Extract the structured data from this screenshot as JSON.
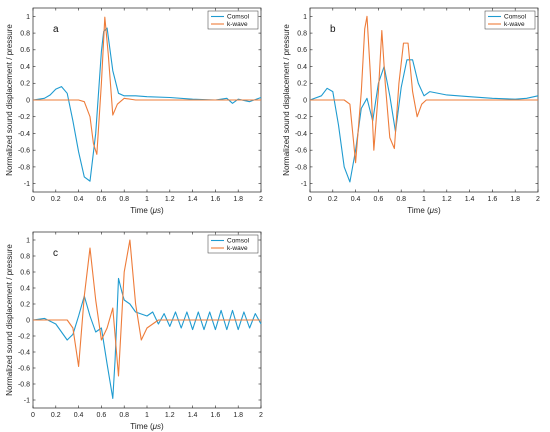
{
  "colors": {
    "comsol": "#1f9bd0",
    "kwave": "#ee7c3a",
    "axis": "#222222",
    "zero": "#777777"
  },
  "chart_data": [
    {
      "type": "line",
      "panel_label": "a",
      "xlabel_prefix": "Time (",
      "xlabel_unit": "μs",
      "xlabel_suffix": ")",
      "ylabel": "Normalized sound displacement / pressure",
      "xlim": [
        0,
        2
      ],
      "ylim": [
        -1.1,
        1.1
      ],
      "xticks": [
        "0",
        "0.2",
        "0.4",
        "0.6",
        "0.8",
        "1",
        "1.2",
        "1.4",
        "1.6",
        "1.8",
        "2"
      ],
      "yticks": [
        "1",
        "0.8",
        "0.6",
        "0.4",
        "0.2",
        "0",
        "-0.2",
        "-0.4",
        "-0.6",
        "-0.8",
        "-1"
      ],
      "legend": "top-right",
      "series": [
        {
          "name": "Comsol",
          "x": [
            0,
            0.1,
            0.15,
            0.2,
            0.25,
            0.3,
            0.35,
            0.4,
            0.45,
            0.5,
            0.55,
            0.6,
            0.62,
            0.65,
            0.7,
            0.75,
            0.8,
            0.9,
            1.0,
            1.2,
            1.4,
            1.6,
            1.7,
            1.75,
            1.8,
            1.9,
            2.0
          ],
          "y": [
            0,
            0.02,
            0.06,
            0.13,
            0.16,
            0.08,
            -0.25,
            -0.62,
            -0.92,
            -0.97,
            -0.4,
            0.58,
            0.82,
            0.86,
            0.35,
            0.08,
            0.05,
            0.05,
            0.04,
            0.03,
            0.01,
            0,
            0.02,
            -0.04,
            0.01,
            -0.02,
            0.03
          ]
        },
        {
          "name": "k-wave",
          "x": [
            0,
            0.4,
            0.45,
            0.5,
            0.53,
            0.56,
            0.6,
            0.63,
            0.66,
            0.7,
            0.74,
            0.8,
            0.9,
            1.0,
            1.2,
            1.6,
            2.0
          ],
          "y": [
            0,
            0,
            -0.02,
            -0.2,
            -0.52,
            -0.65,
            0.2,
            0.99,
            0.55,
            -0.18,
            -0.05,
            0.02,
            0,
            0,
            0,
            0,
            0
          ]
        }
      ]
    },
    {
      "type": "line",
      "panel_label": "b",
      "xlabel_prefix": "Time (",
      "xlabel_unit": "μs",
      "xlabel_suffix": ")",
      "ylabel": "Normalized sound displacement / pressure",
      "xlim": [
        0,
        2
      ],
      "ylim": [
        -1.1,
        1.1
      ],
      "xticks": [
        "0",
        "0.2",
        "0.4",
        "0.6",
        "0.8",
        "1",
        "1.2",
        "1.4",
        "1.6",
        "1.8",
        "2"
      ],
      "yticks": [
        "1",
        "0.8",
        "0.6",
        "0.4",
        "0.2",
        "0",
        "-0.2",
        "-0.4",
        "-0.6",
        "-0.8",
        "-1"
      ],
      "legend": "top-right",
      "series": [
        {
          "name": "Comsol",
          "x": [
            0,
            0.1,
            0.15,
            0.2,
            0.25,
            0.3,
            0.35,
            0.4,
            0.45,
            0.5,
            0.55,
            0.6,
            0.65,
            0.7,
            0.75,
            0.8,
            0.85,
            0.9,
            0.95,
            1.0,
            1.05,
            1.2,
            1.4,
            1.6,
            1.8,
            1.9,
            2.0
          ],
          "y": [
            0,
            0.05,
            0.14,
            0.1,
            -0.3,
            -0.8,
            -0.98,
            -0.6,
            -0.1,
            0.02,
            -0.25,
            0.2,
            0.4,
            0.05,
            -0.38,
            0.15,
            0.48,
            0.48,
            0.2,
            0.05,
            0.1,
            0.06,
            0.04,
            0.02,
            0.01,
            0.02,
            0.05
          ]
        },
        {
          "name": "k-wave",
          "x": [
            0,
            0.3,
            0.35,
            0.4,
            0.45,
            0.48,
            0.5,
            0.53,
            0.56,
            0.6,
            0.63,
            0.66,
            0.7,
            0.74,
            0.78,
            0.82,
            0.86,
            0.9,
            0.94,
            0.98,
            1.02,
            1.1,
            1.2,
            2.0
          ],
          "y": [
            0,
            0,
            -0.05,
            -0.75,
            0.1,
            0.85,
            1.0,
            0.3,
            -0.6,
            0.1,
            0.83,
            0.2,
            -0.45,
            -0.58,
            0.2,
            0.68,
            0.68,
            0.1,
            -0.2,
            -0.05,
            0,
            0,
            0,
            0
          ]
        }
      ]
    },
    {
      "type": "line",
      "panel_label": "c",
      "xlabel_prefix": "Time (",
      "xlabel_unit": "μs",
      "xlabel_suffix": ")",
      "ylabel": "Normalized sound displacement / pressure",
      "xlim": [
        0,
        2
      ],
      "ylim": [
        -1.1,
        1.1
      ],
      "xticks": [
        "0",
        "0.2",
        "0.4",
        "0.6",
        "0.8",
        "1",
        "1.2",
        "1.4",
        "1.6",
        "1.8",
        "2"
      ],
      "yticks": [
        "1",
        "0.8",
        "0.6",
        "0.4",
        "0.2",
        "0",
        "-0.2",
        "-0.4",
        "-0.6",
        "-0.8",
        "-1"
      ],
      "legend": "top-right",
      "series": [
        {
          "name": "Comsol",
          "x": [
            0,
            0.1,
            0.2,
            0.3,
            0.35,
            0.4,
            0.45,
            0.5,
            0.55,
            0.6,
            0.65,
            0.7,
            0.72,
            0.75,
            0.78,
            0.8,
            0.85,
            0.9,
            1.0,
            1.05,
            1.1,
            1.15,
            1.2,
            1.25,
            1.3,
            1.35,
            1.4,
            1.45,
            1.5,
            1.55,
            1.6,
            1.65,
            1.7,
            1.75,
            1.8,
            1.85,
            1.9,
            1.95,
            2.0
          ],
          "y": [
            0,
            0.02,
            -0.05,
            -0.25,
            -0.18,
            0.05,
            0.3,
            0.05,
            -0.15,
            -0.1,
            -0.55,
            -0.98,
            -0.5,
            0.52,
            0.35,
            0.25,
            0.2,
            0.1,
            0.05,
            0.1,
            -0.05,
            0.08,
            -0.08,
            0.1,
            -0.1,
            0.1,
            -0.12,
            0.1,
            -0.12,
            0.1,
            -0.12,
            0.12,
            -0.12,
            0.12,
            -0.12,
            0.1,
            -0.1,
            0.08,
            -0.05
          ]
        },
        {
          "name": "k-wave",
          "x": [
            0,
            0.3,
            0.35,
            0.4,
            0.45,
            0.5,
            0.55,
            0.6,
            0.65,
            0.7,
            0.75,
            0.8,
            0.85,
            0.9,
            0.95,
            1.0,
            1.1,
            1.2,
            2.0
          ],
          "y": [
            0,
            0,
            -0.1,
            -0.58,
            0.3,
            0.9,
            0.25,
            -0.25,
            -0.1,
            0.15,
            -0.7,
            0.6,
            1.0,
            0.2,
            -0.25,
            -0.1,
            0,
            0,
            0
          ]
        }
      ]
    }
  ]
}
